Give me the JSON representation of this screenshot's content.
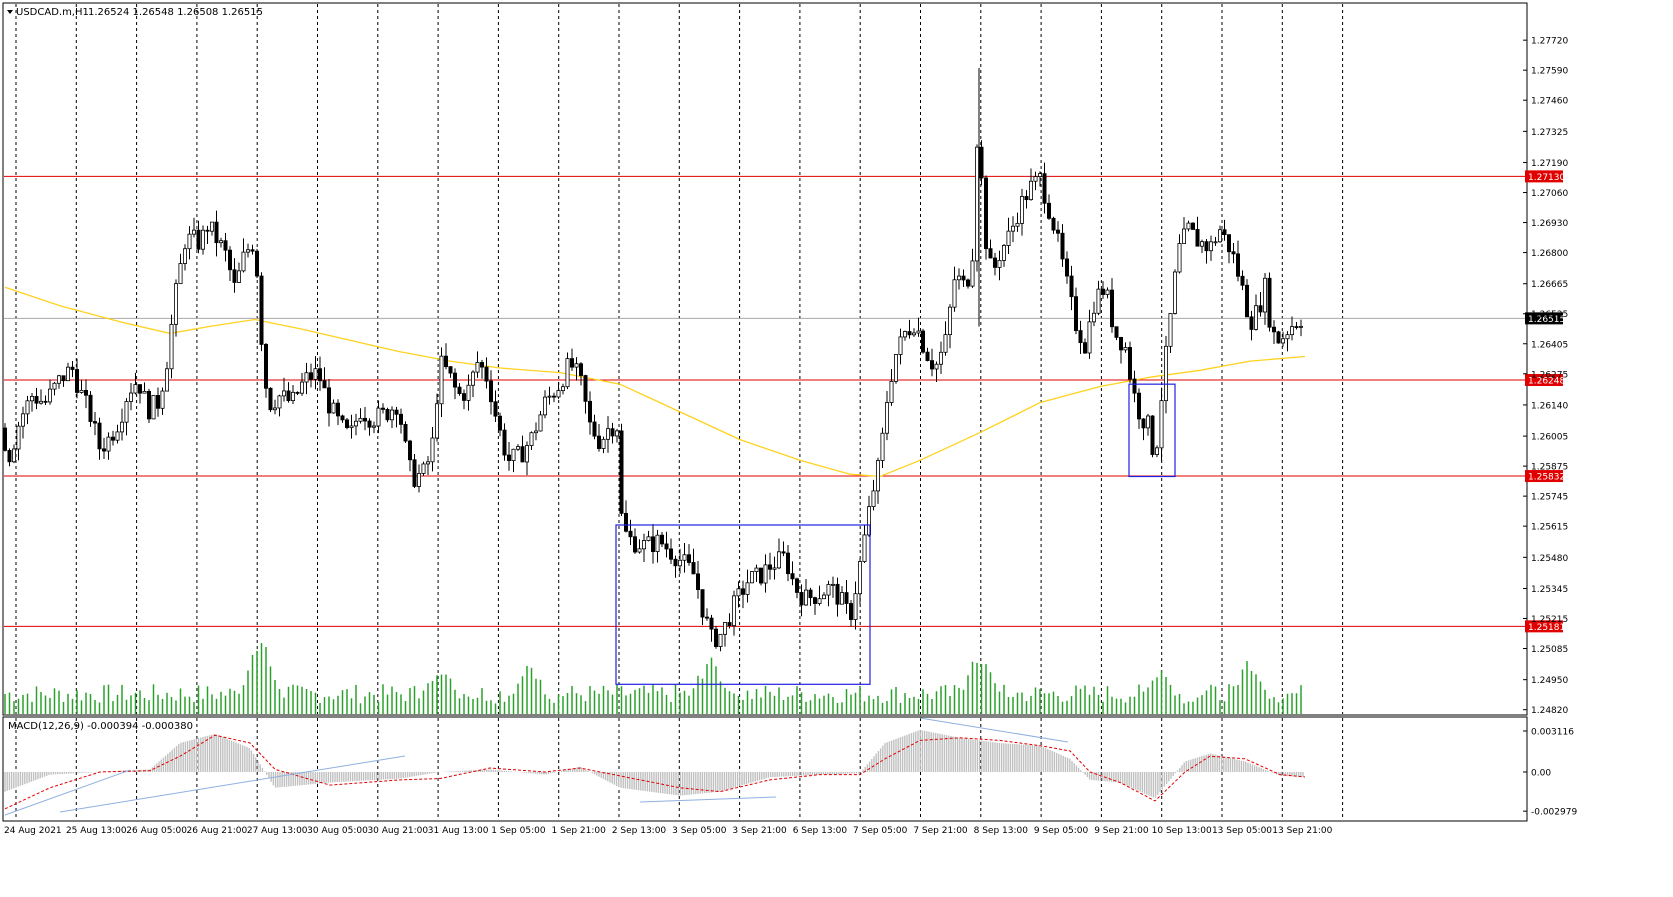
{
  "header": {
    "symbol_label": "USDCAD.m,H1",
    "ohlc_label": "1.26524 1.26548 1.26508 1.26515"
  },
  "macd": {
    "label": "MACD(12,26,9) -0.000394 -0.000380",
    "axis_ticks": [
      "0.003116",
      "0.00",
      "-0.002979"
    ]
  },
  "colors": {
    "background": "#ffffff",
    "frame": "#000000",
    "bull_candle": "#ffffff",
    "bear_candle": "#000000",
    "moving_average": "#ffd21f",
    "support_resistance": "#e00000",
    "pattern_box": "#2020e0",
    "volume_bars": "#2aa02a",
    "macd_histogram": "#c0c0c0",
    "macd_signal": "#e00000",
    "trendline": "#8fb0e0",
    "price_marker": "#000000"
  },
  "chart_data": {
    "type": "candlestick",
    "instrument": "USDCAD.m",
    "timeframe": "H1",
    "last_ohlc": {
      "open": 1.26524,
      "high": 1.26548,
      "low": 1.26508,
      "close": 1.26515
    },
    "y_axis_ticks": [
      "1.27720",
      "1.27590",
      "1.27460",
      "1.27325",
      "1.27190",
      "1.27060",
      "1.26930",
      "1.26800",
      "1.26665",
      "1.26535",
      "1.26405",
      "1.26275",
      "1.26140",
      "1.26005",
      "1.25875",
      "1.25745",
      "1.25615",
      "1.25480",
      "1.25345",
      "1.25215",
      "1.25085",
      "1.24950",
      "1.24820"
    ],
    "ylim": [
      1.2481,
      1.2779
    ],
    "x_axis_ticks": [
      "24 Aug 2021",
      "25 Aug 13:00",
      "26 Aug 05:00",
      "26 Aug 21:00",
      "27 Aug 13:00",
      "30 Aug 05:00",
      "30 Aug 21:00",
      "31 Aug 13:00",
      "1 Sep 05:00",
      "1 Sep 21:00",
      "2 Sep 13:00",
      "3 Sep 05:00",
      "3 Sep 21:00",
      "6 Sep 13:00",
      "7 Sep 05:00",
      "7 Sep 21:00",
      "8 Sep 13:00",
      "9 Sep 05:00",
      "9 Sep 21:00",
      "10 Sep 13:00",
      "13 Sep 05:00",
      "13 Sep 21:00"
    ],
    "horizontal_levels": [
      {
        "value": 1.2713,
        "label": "1.27130"
      },
      {
        "value": 1.26248,
        "label": "1.26248"
      },
      {
        "value": 1.25832,
        "label": "1.25832"
      },
      {
        "value": 1.25181,
        "label": "1.25181"
      }
    ],
    "current_price": {
      "value": 1.26515,
      "label": "1.26515"
    },
    "price_path": [
      {
        "x": 0,
        "close": 1.2604
      },
      {
        "x": 10,
        "close": 1.2592
      },
      {
        "x": 20,
        "close": 1.2608
      },
      {
        "x": 32,
        "close": 1.2618
      },
      {
        "x": 45,
        "close": 1.2615
      },
      {
        "x": 60,
        "close": 1.2625
      },
      {
        "x": 72,
        "close": 1.263
      },
      {
        "x": 80,
        "close": 1.262
      },
      {
        "x": 90,
        "close": 1.261
      },
      {
        "x": 100,
        "close": 1.2595
      },
      {
        "x": 110,
        "close": 1.26
      },
      {
        "x": 120,
        "close": 1.2608
      },
      {
        "x": 128,
        "close": 1.262
      },
      {
        "x": 138,
        "close": 1.2625
      },
      {
        "x": 148,
        "close": 1.2612
      },
      {
        "x": 158,
        "close": 1.2615
      },
      {
        "x": 166,
        "close": 1.263
      },
      {
        "x": 175,
        "close": 1.266
      },
      {
        "x": 185,
        "close": 1.2685
      },
      {
        "x": 192,
        "close": 1.2686
      },
      {
        "x": 200,
        "close": 1.2684
      },
      {
        "x": 208,
        "close": 1.2692
      },
      {
        "x": 215,
        "close": 1.2687
      },
      {
        "x": 225,
        "close": 1.268
      },
      {
        "x": 235,
        "close": 1.2664
      },
      {
        "x": 245,
        "close": 1.268
      },
      {
        "x": 255,
        "close": 1.2685
      },
      {
        "x": 262,
        "close": 1.264
      },
      {
        "x": 268,
        "close": 1.2614
      },
      {
        "x": 280,
        "close": 1.2618
      },
      {
        "x": 292,
        "close": 1.2615
      },
      {
        "x": 305,
        "close": 1.2625
      },
      {
        "x": 318,
        "close": 1.2628
      },
      {
        "x": 328,
        "close": 1.2615
      },
      {
        "x": 340,
        "close": 1.2605
      },
      {
        "x": 350,
        "close": 1.26
      },
      {
        "x": 360,
        "close": 1.2612
      },
      {
        "x": 372,
        "close": 1.2608
      },
      {
        "x": 385,
        "close": 1.261
      },
      {
        "x": 398,
        "close": 1.2615
      },
      {
        "x": 405,
        "close": 1.2596
      },
      {
        "x": 412,
        "close": 1.2582
      },
      {
        "x": 425,
        "close": 1.2585
      },
      {
        "x": 432,
        "close": 1.2595
      },
      {
        "x": 440,
        "close": 1.2632
      },
      {
        "x": 448,
        "close": 1.2628
      },
      {
        "x": 458,
        "close": 1.2618
      },
      {
        "x": 468,
        "close": 1.262
      },
      {
        "x": 478,
        "close": 1.2633
      },
      {
        "x": 488,
        "close": 1.2625
      },
      {
        "x": 498,
        "close": 1.2605
      },
      {
        "x": 508,
        "close": 1.259
      },
      {
        "x": 520,
        "close": 1.2592
      },
      {
        "x": 532,
        "close": 1.26
      },
      {
        "x": 545,
        "close": 1.2615
      },
      {
        "x": 558,
        "close": 1.2622
      },
      {
        "x": 570,
        "close": 1.2632
      },
      {
        "x": 580,
        "close": 1.2625
      },
      {
        "x": 590,
        "close": 1.2605
      },
      {
        "x": 600,
        "close": 1.2598
      },
      {
        "x": 610,
        "close": 1.2605
      },
      {
        "x": 618,
        "close": 1.2605
      },
      {
        "x": 622,
        "close": 1.256
      },
      {
        "x": 632,
        "close": 1.2555
      },
      {
        "x": 645,
        "close": 1.2553
      },
      {
        "x": 660,
        "close": 1.2555
      },
      {
        "x": 672,
        "close": 1.255
      },
      {
        "x": 685,
        "close": 1.2545
      },
      {
        "x": 695,
        "close": 1.254
      },
      {
        "x": 703,
        "close": 1.2525
      },
      {
        "x": 712,
        "close": 1.2512
      },
      {
        "x": 722,
        "close": 1.2515
      },
      {
        "x": 735,
        "close": 1.2528
      },
      {
        "x": 748,
        "close": 1.2538
      },
      {
        "x": 760,
        "close": 1.254
      },
      {
        "x": 772,
        "close": 1.2545
      },
      {
        "x": 785,
        "close": 1.2548
      },
      {
        "x": 795,
        "close": 1.2535
      },
      {
        "x": 805,
        "close": 1.253
      },
      {
        "x": 818,
        "close": 1.2532
      },
      {
        "x": 830,
        "close": 1.2535
      },
      {
        "x": 840,
        "close": 1.253
      },
      {
        "x": 850,
        "close": 1.2522
      },
      {
        "x": 858,
        "close": 1.254
      },
      {
        "x": 866,
        "close": 1.256
      },
      {
        "x": 872,
        "close": 1.2575
      },
      {
        "x": 880,
        "close": 1.259
      },
      {
        "x": 888,
        "close": 1.262
      },
      {
        "x": 895,
        "close": 1.2635
      },
      {
        "x": 905,
        "close": 1.2645
      },
      {
        "x": 915,
        "close": 1.265
      },
      {
        "x": 925,
        "close": 1.2638
      },
      {
        "x": 935,
        "close": 1.263
      },
      {
        "x": 945,
        "close": 1.264
      },
      {
        "x": 955,
        "close": 1.267
      },
      {
        "x": 965,
        "close": 1.2665
      },
      {
        "x": 972,
        "close": 1.2675
      },
      {
        "x": 978,
        "close": 1.274
      },
      {
        "x": 984,
        "close": 1.269
      },
      {
        "x": 992,
        "close": 1.267
      },
      {
        "x": 1000,
        "close": 1.268
      },
      {
        "x": 1010,
        "close": 1.2688
      },
      {
        "x": 1020,
        "close": 1.27
      },
      {
        "x": 1030,
        "close": 1.2708
      },
      {
        "x": 1040,
        "close": 1.2712
      },
      {
        "x": 1045,
        "close": 1.2705
      },
      {
        "x": 1055,
        "close": 1.269
      },
      {
        "x": 1065,
        "close": 1.267
      },
      {
        "x": 1075,
        "close": 1.265
      },
      {
        "x": 1085,
        "close": 1.264
      },
      {
        "x": 1095,
        "close": 1.266
      },
      {
        "x": 1105,
        "close": 1.2665
      },
      {
        "x": 1115,
        "close": 1.2645
      },
      {
        "x": 1125,
        "close": 1.264
      },
      {
        "x": 1133,
        "close": 1.262
      },
      {
        "x": 1140,
        "close": 1.261
      },
      {
        "x": 1148,
        "close": 1.2605
      },
      {
        "x": 1155,
        "close": 1.259
      },
      {
        "x": 1162,
        "close": 1.262
      },
      {
        "x": 1170,
        "close": 1.265
      },
      {
        "x": 1178,
        "close": 1.268
      },
      {
        "x": 1188,
        "close": 1.269
      },
      {
        "x": 1198,
        "close": 1.2685
      },
      {
        "x": 1210,
        "close": 1.2682
      },
      {
        "x": 1220,
        "close": 1.269
      },
      {
        "x": 1232,
        "close": 1.268
      },
      {
        "x": 1242,
        "close": 1.2665
      },
      {
        "x": 1250,
        "close": 1.265
      },
      {
        "x": 1258,
        "close": 1.2655
      },
      {
        "x": 1265,
        "close": 1.2665
      },
      {
        "x": 1272,
        "close": 1.2645
      },
      {
        "x": 1280,
        "close": 1.2642
      },
      {
        "x": 1290,
        "close": 1.2648
      },
      {
        "x": 1300,
        "close": 1.26515
      }
    ],
    "moving_average": [
      {
        "x": 5,
        "value": 1.2665
      },
      {
        "x": 60,
        "value": 1.2657
      },
      {
        "x": 120,
        "value": 1.265
      },
      {
        "x": 170,
        "value": 1.2645
      },
      {
        "x": 210,
        "value": 1.2648
      },
      {
        "x": 255,
        "value": 1.2651
      },
      {
        "x": 300,
        "value": 1.2647
      },
      {
        "x": 350,
        "value": 1.2642
      },
      {
        "x": 400,
        "value": 1.2637
      },
      {
        "x": 450,
        "value": 1.2633
      },
      {
        "x": 500,
        "value": 1.263
      },
      {
        "x": 560,
        "value": 1.2628
      },
      {
        "x": 620,
        "value": 1.2623
      },
      {
        "x": 680,
        "value": 1.2611
      },
      {
        "x": 740,
        "value": 1.2599
      },
      {
        "x": 800,
        "value": 1.259
      },
      {
        "x": 850,
        "value": 1.2584
      },
      {
        "x": 880,
        "value": 1.2583
      },
      {
        "x": 920,
        "value": 1.259
      },
      {
        "x": 980,
        "value": 1.2602
      },
      {
        "x": 1040,
        "value": 1.2615
      },
      {
        "x": 1100,
        "value": 1.2622
      },
      {
        "x": 1150,
        "value": 1.2626
      },
      {
        "x": 1200,
        "value": 1.2629
      },
      {
        "x": 1250,
        "value": 1.2633
      },
      {
        "x": 1305,
        "value": 1.2635
      }
    ],
    "pattern_boxes": [
      {
        "x0": 616,
        "x1": 870,
        "y_top": 1.2562,
        "y_bottom": 1.2493
      },
      {
        "x0": 1129,
        "x1": 1175,
        "y_top": 1.2623,
        "y_bottom": 1.2583
      }
    ],
    "volume_peaks": [
      {
        "x": 260,
        "v": 1.0
      },
      {
        "x": 440,
        "v": 0.65
      },
      {
        "x": 530,
        "v": 0.62
      },
      {
        "x": 710,
        "v": 0.75
      },
      {
        "x": 980,
        "v": 0.8
      },
      {
        "x": 1160,
        "v": 0.6
      },
      {
        "x": 1248,
        "v": 0.7
      }
    ],
    "macd_path": [
      {
        "x": 5,
        "hist": -0.0015,
        "signal": -0.0028
      },
      {
        "x": 50,
        "hist": -0.0002,
        "signal": -0.0012
      },
      {
        "x": 100,
        "hist": 0.0,
        "signal": 0.0
      },
      {
        "x": 150,
        "hist": 0.0002,
        "signal": 0.0001
      },
      {
        "x": 180,
        "hist": 0.0022,
        "signal": 0.0012
      },
      {
        "x": 215,
        "hist": 0.0029,
        "signal": 0.0028
      },
      {
        "x": 250,
        "hist": 0.0018,
        "signal": 0.0022
      },
      {
        "x": 275,
        "hist": -0.0012,
        "signal": 0.0002
      },
      {
        "x": 330,
        "hist": -0.0008,
        "signal": -0.001
      },
      {
        "x": 400,
        "hist": -0.0005,
        "signal": -0.0006
      },
      {
        "x": 440,
        "hist": 0.0,
        "signal": -0.0005
      },
      {
        "x": 490,
        "hist": 0.0002,
        "signal": 0.0003
      },
      {
        "x": 545,
        "hist": -0.0002,
        "signal": 0.0
      },
      {
        "x": 580,
        "hist": 0.0004,
        "signal": 0.0003
      },
      {
        "x": 620,
        "hist": -0.0012,
        "signal": -0.0003
      },
      {
        "x": 680,
        "hist": -0.0018,
        "signal": -0.0012
      },
      {
        "x": 720,
        "hist": -0.0015,
        "signal": -0.0015
      },
      {
        "x": 770,
        "hist": -0.0004,
        "signal": -0.0006
      },
      {
        "x": 820,
        "hist": -0.0002,
        "signal": -0.0002
      },
      {
        "x": 860,
        "hist": -0.0001,
        "signal": -0.0002
      },
      {
        "x": 885,
        "hist": 0.0022,
        "signal": 0.001
      },
      {
        "x": 920,
        "hist": 0.0032,
        "signal": 0.0024
      },
      {
        "x": 960,
        "hist": 0.0026,
        "signal": 0.0026
      },
      {
        "x": 1000,
        "hist": 0.0022,
        "signal": 0.0024
      },
      {
        "x": 1040,
        "hist": 0.002,
        "signal": 0.002
      },
      {
        "x": 1070,
        "hist": 0.001,
        "signal": 0.0016
      },
      {
        "x": 1090,
        "hist": -0.0006,
        "signal": 0.0
      },
      {
        "x": 1120,
        "hist": -0.0008,
        "signal": -0.0008
      },
      {
        "x": 1155,
        "hist": -0.002,
        "signal": -0.0022
      },
      {
        "x": 1185,
        "hist": 0.0008,
        "signal": 0.0
      },
      {
        "x": 1210,
        "hist": 0.0014,
        "signal": 0.0012
      },
      {
        "x": 1245,
        "hist": 0.0008,
        "signal": 0.001
      },
      {
        "x": 1280,
        "hist": -0.0003,
        "signal": -0.0002
      },
      {
        "x": 1305,
        "hist": -0.000394,
        "signal": -0.00038
      }
    ],
    "macd_ylim": [
      -0.0035,
      0.0038
    ]
  }
}
